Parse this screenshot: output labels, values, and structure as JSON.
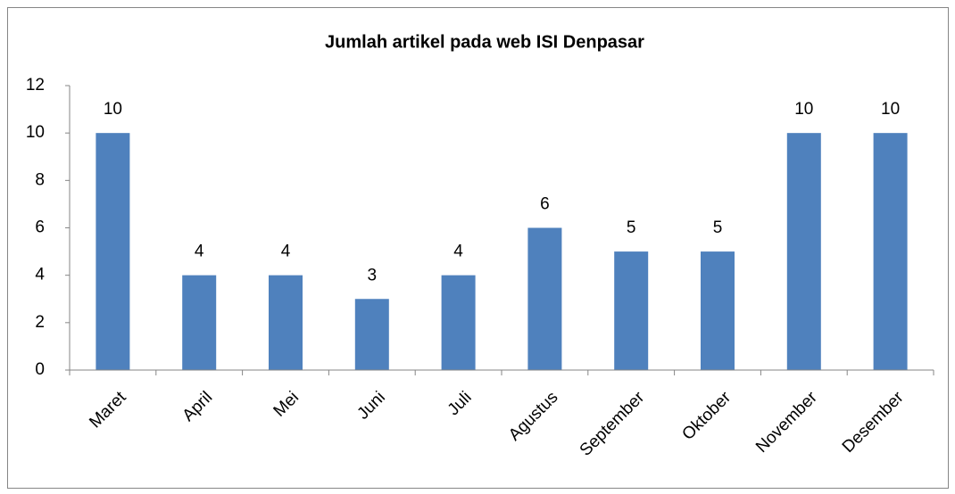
{
  "chart_data": {
    "type": "bar",
    "title": "Jumlah artikel pada web ISI Denpasar",
    "categories": [
      "Maret",
      "April",
      "Mei",
      "Juni",
      "Juli",
      "Agustus",
      "September",
      "Oktober",
      "November",
      "Desember"
    ],
    "values": [
      10,
      4,
      4,
      3,
      4,
      6,
      5,
      5,
      10,
      10
    ],
    "color": "#4f81bd",
    "ylim": [
      0,
      12
    ],
    "yticks": [
      0,
      2,
      4,
      6,
      8,
      10,
      12
    ],
    "grid": false
  }
}
